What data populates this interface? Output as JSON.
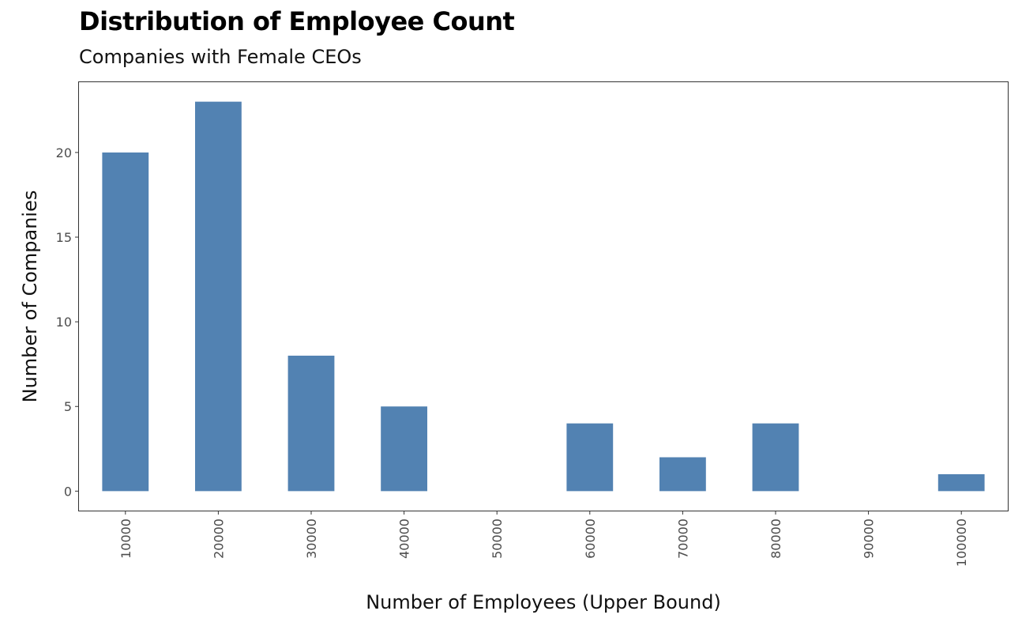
{
  "title": "Distribution of Employee Count",
  "subtitle": "Companies with Female CEOs",
  "colors": {
    "bar": "#5282b2",
    "panel_border": "#333333",
    "tick": "#4d4d4d"
  },
  "chart_data": {
    "type": "bar",
    "title": "Distribution of Employee Count",
    "subtitle": "Companies with Female CEOs",
    "xlabel": "Number of Employees (Upper Bound)",
    "ylabel": "Number of Companies",
    "categories": [
      "10000",
      "20000",
      "30000",
      "40000",
      "50000",
      "60000",
      "70000",
      "80000",
      "90000",
      "100000"
    ],
    "values": [
      20,
      23,
      8,
      5,
      0,
      4,
      2,
      4,
      0,
      1
    ],
    "yticks": [
      0,
      5,
      10,
      15,
      20
    ],
    "ylim": [
      -1.15,
      24.15
    ],
    "grid": false,
    "legend": "none"
  }
}
